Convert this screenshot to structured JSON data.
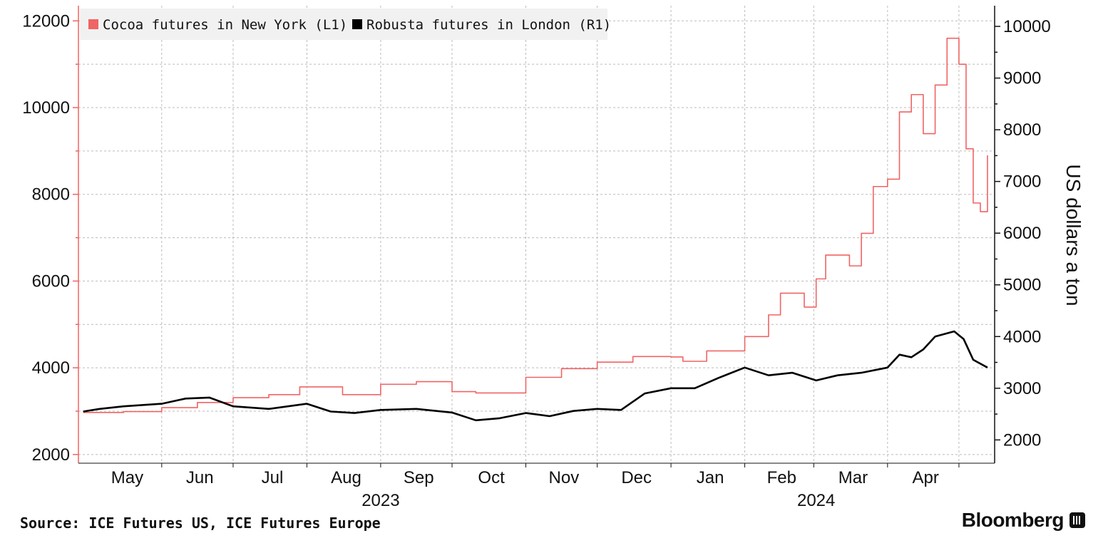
{
  "chart_data": {
    "type": "line",
    "legend_placement": "top-left",
    "grid": true,
    "x_tick_labels": [
      "May",
      "Jun",
      "Jul",
      "Aug",
      "Sep",
      "Oct",
      "Nov",
      "Dec",
      "Jan",
      "Feb",
      "Mar",
      "Apr"
    ],
    "year_labels": [
      "2023",
      "2024"
    ],
    "y_left": {
      "ticks": [
        2000,
        4000,
        6000,
        8000,
        10000,
        12000
      ],
      "range": [
        1800,
        12350
      ]
    },
    "y_right": {
      "ticks": [
        2000,
        3000,
        4000,
        5000,
        6000,
        7000,
        8000,
        9000,
        10000
      ],
      "range": [
        1550,
        10400
      ],
      "label": "US dollars a ton"
    },
    "x_range": [
      "2023-04-26",
      "2024-05-15"
    ],
    "series": [
      {
        "name": "Cocoa futures in New York (L1)",
        "axis": "left",
        "color": "#f06464",
        "points": [
          [
            "2023-04-28",
            2970
          ],
          [
            "2023-05-15",
            2990
          ],
          [
            "2023-05-31",
            3080
          ],
          [
            "2023-06-15",
            3200
          ],
          [
            "2023-06-30",
            3310
          ],
          [
            "2023-07-15",
            3380
          ],
          [
            "2023-07-28",
            3560
          ],
          [
            "2023-08-15",
            3380
          ],
          [
            "2023-08-31",
            3620
          ],
          [
            "2023-09-15",
            3680
          ],
          [
            "2023-09-30",
            3450
          ],
          [
            "2023-10-10",
            3420
          ],
          [
            "2023-10-31",
            3780
          ],
          [
            "2023-11-15",
            3980
          ],
          [
            "2023-11-30",
            4130
          ],
          [
            "2023-12-15",
            4260
          ],
          [
            "2023-12-31",
            4250
          ],
          [
            "2024-01-05",
            4150
          ],
          [
            "2024-01-15",
            4390
          ],
          [
            "2024-01-31",
            4720
          ],
          [
            "2024-02-10",
            5220
          ],
          [
            "2024-02-15",
            5720
          ],
          [
            "2024-02-25",
            5400
          ],
          [
            "2024-03-01",
            6050
          ],
          [
            "2024-03-05",
            6600
          ],
          [
            "2024-03-15",
            6350
          ],
          [
            "2024-03-20",
            7100
          ],
          [
            "2024-03-25",
            8180
          ],
          [
            "2024-03-31",
            8350
          ],
          [
            "2024-04-05",
            9900
          ],
          [
            "2024-04-10",
            10300
          ],
          [
            "2024-04-15",
            9400
          ],
          [
            "2024-04-20",
            10520
          ],
          [
            "2024-04-25",
            11600
          ],
          [
            "2024-04-30",
            11000
          ],
          [
            "2024-05-03",
            9050
          ],
          [
            "2024-05-06",
            7800
          ],
          [
            "2024-05-09",
            7600
          ],
          [
            "2024-05-12",
            8900
          ]
        ]
      },
      {
        "name": "Robusta futures in London (R1)",
        "axis": "right",
        "color": "#000000",
        "points": [
          [
            "2023-04-28",
            2550
          ],
          [
            "2023-05-05",
            2600
          ],
          [
            "2023-05-15",
            2650
          ],
          [
            "2023-05-31",
            2700
          ],
          [
            "2023-06-10",
            2800
          ],
          [
            "2023-06-20",
            2820
          ],
          [
            "2023-06-30",
            2650
          ],
          [
            "2023-07-15",
            2600
          ],
          [
            "2023-07-31",
            2700
          ],
          [
            "2023-08-10",
            2550
          ],
          [
            "2023-08-20",
            2520
          ],
          [
            "2023-08-31",
            2580
          ],
          [
            "2023-09-15",
            2600
          ],
          [
            "2023-09-30",
            2530
          ],
          [
            "2023-10-10",
            2380
          ],
          [
            "2023-10-20",
            2420
          ],
          [
            "2023-10-31",
            2520
          ],
          [
            "2023-11-10",
            2460
          ],
          [
            "2023-11-20",
            2560
          ],
          [
            "2023-11-30",
            2600
          ],
          [
            "2023-12-10",
            2580
          ],
          [
            "2023-12-20",
            2900
          ],
          [
            "2023-12-31",
            3000
          ],
          [
            "2024-01-10",
            3000
          ],
          [
            "2024-01-20",
            3200
          ],
          [
            "2024-01-31",
            3400
          ],
          [
            "2024-02-10",
            3250
          ],
          [
            "2024-02-20",
            3300
          ],
          [
            "2024-03-01",
            3150
          ],
          [
            "2024-03-10",
            3250
          ],
          [
            "2024-03-20",
            3300
          ],
          [
            "2024-03-31",
            3400
          ],
          [
            "2024-04-05",
            3650
          ],
          [
            "2024-04-10",
            3600
          ],
          [
            "2024-04-15",
            3750
          ],
          [
            "2024-04-20",
            4000
          ],
          [
            "2024-04-28",
            4100
          ],
          [
            "2024-05-02",
            3950
          ],
          [
            "2024-05-06",
            3550
          ],
          [
            "2024-05-12",
            3400
          ]
        ]
      }
    ]
  },
  "footer": {
    "source": "Source: ICE Futures US, ICE Futures Europe",
    "brand": "Bloomberg"
  }
}
